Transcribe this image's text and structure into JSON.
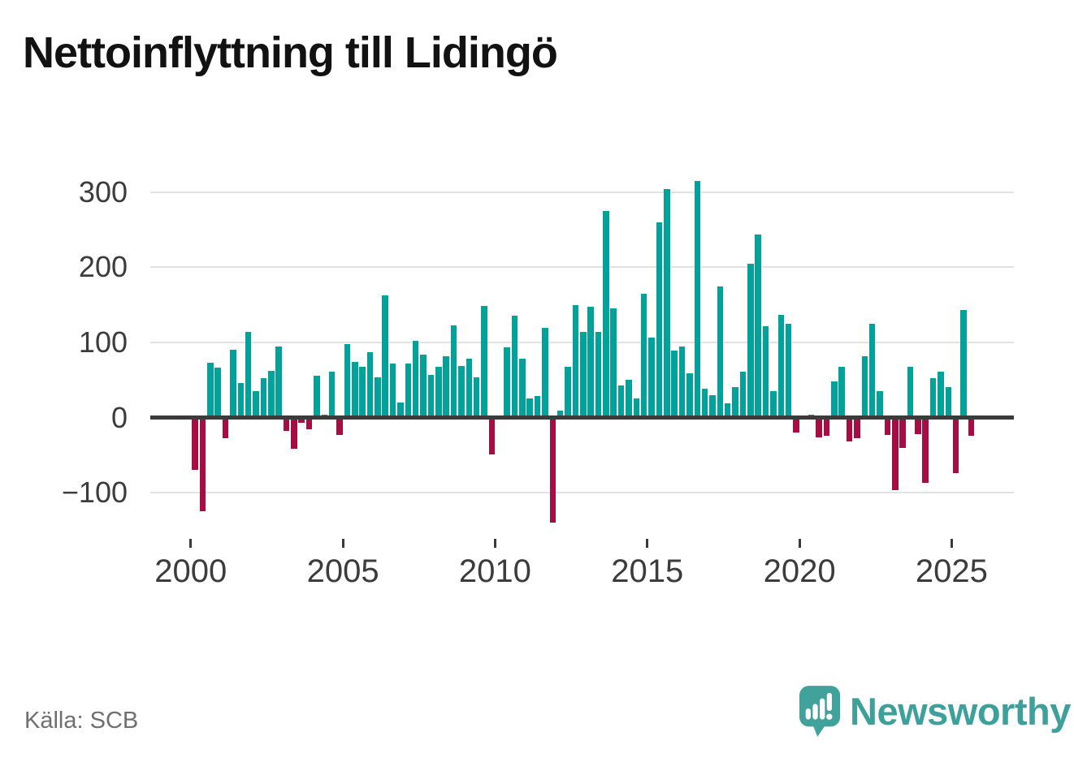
{
  "title": "Nettoinflyttning till Lidingö",
  "source": "Källa: SCB",
  "logo": {
    "text": "Newsworthy",
    "icon": "newsworthy-speech-bubble-chart-icon"
  },
  "colors": {
    "positive": "#00a29a",
    "negative": "#a50d43",
    "axis": "#3b3b3b",
    "grid": "#e2e2e2",
    "tick_label": "#3c3c3c",
    "title_text": "#121212",
    "source_text": "#6f6f6f",
    "logo_teal": "#3ea09a"
  },
  "chart_data": {
    "type": "bar",
    "title": "Nettoinflyttning till Lidingö",
    "frequency": "quarterly",
    "start_period": "2000Q1",
    "end_period": "2025Q3",
    "ylabel": "",
    "xlabel": "",
    "y_ticks": [
      300,
      200,
      100,
      0,
      -100
    ],
    "ylim": [
      -155,
      330
    ],
    "x_tick_labels": [
      "2000",
      "2005",
      "2010",
      "2015",
      "2020",
      "2025"
    ],
    "grid": true,
    "legend": "none",
    "positive_color": "#00a29a",
    "negative_color": "#a50d43",
    "values": [
      -70,
      -125,
      73,
      66,
      -28,
      90,
      46,
      114,
      35,
      52,
      62,
      95,
      -18,
      -42,
      -7,
      -16,
      56,
      4,
      61,
      -23,
      98,
      74,
      67,
      87,
      54,
      162,
      72,
      20,
      72,
      102,
      84,
      57,
      67,
      82,
      123,
      69,
      78,
      53,
      149,
      -49,
      0,
      93,
      135,
      78,
      25,
      29,
      119,
      -140,
      9,
      67,
      150,
      114,
      147,
      114,
      275,
      145,
      43,
      50,
      25,
      165,
      106,
      260,
      304,
      89,
      94,
      59,
      315,
      38,
      30,
      174,
      19,
      41,
      61,
      205,
      243,
      121,
      35,
      137,
      125,
      -20,
      0,
      4,
      -26,
      -24,
      48,
      67,
      -32,
      -28,
      82,
      125,
      35,
      -23,
      -97,
      -40,
      68,
      -22,
      -87,
      52,
      61,
      40,
      -74,
      143,
      -24
    ]
  }
}
